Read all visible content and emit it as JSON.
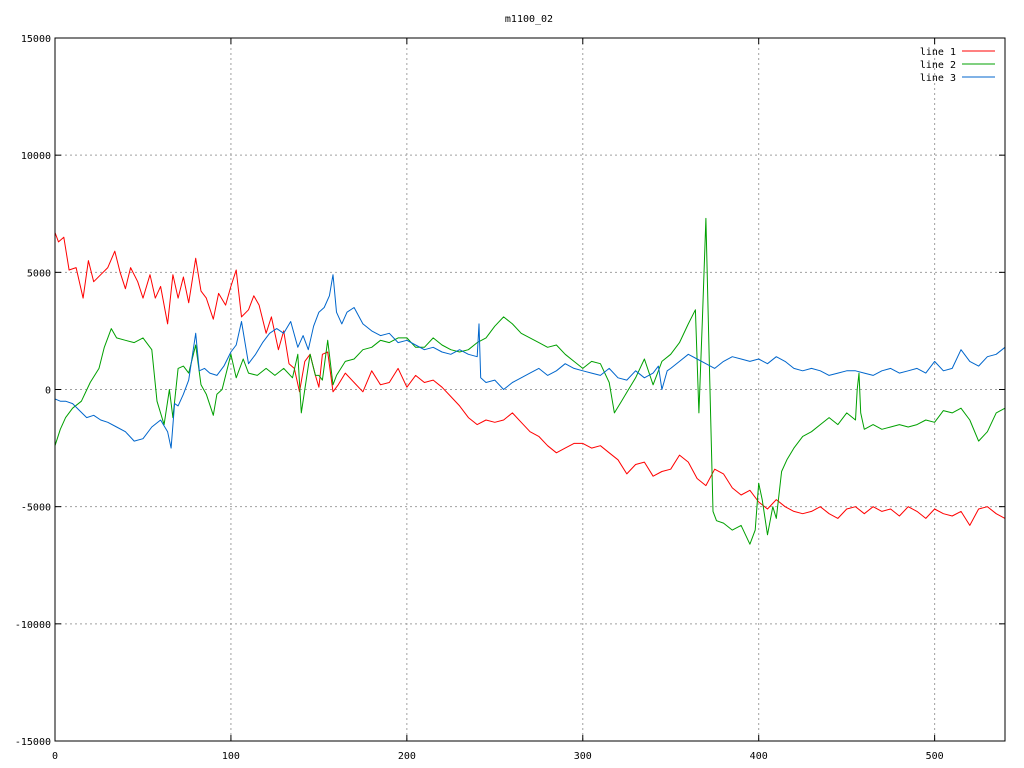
{
  "chart_data": {
    "type": "line",
    "title": "m1100_02",
    "xlabel": "",
    "ylabel": "",
    "xlim": [
      0,
      540
    ],
    "ylim": [
      -15000,
      15000
    ],
    "xticks": [
      0,
      100,
      200,
      300,
      400,
      500
    ],
    "yticks": [
      -15000,
      -10000,
      -5000,
      0,
      5000,
      10000,
      15000
    ],
    "grid": true,
    "legend_position": "top-right",
    "series": [
      {
        "name": "line 1",
        "color": "#ff0000",
        "x": [
          0,
          2,
          5,
          8,
          12,
          16,
          19,
          22,
          26,
          30,
          34,
          37,
          40,
          43,
          47,
          50,
          54,
          57,
          60,
          64,
          67,
          70,
          73,
          76,
          80,
          83,
          86,
          90,
          93,
          97,
          100,
          103,
          106,
          110,
          113,
          116,
          120,
          123,
          127,
          130,
          133,
          136,
          139,
          142,
          145,
          148,
          150,
          152,
          155,
          158,
          161,
          165,
          170,
          175,
          180,
          185,
          190,
          195,
          200,
          205,
          210,
          215,
          220,
          225,
          230,
          235,
          240,
          245,
          250,
          255,
          260,
          265,
          270,
          275,
          280,
          285,
          290,
          295,
          300,
          305,
          310,
          315,
          320,
          325,
          330,
          335,
          340,
          345,
          350,
          355,
          360,
          365,
          370,
          375,
          380,
          385,
          390,
          395,
          400,
          405,
          410,
          415,
          420,
          425,
          430,
          435,
          440,
          445,
          450,
          455,
          460,
          465,
          470,
          475,
          480,
          485,
          490,
          495,
          500,
          505,
          510,
          515,
          520,
          525,
          530,
          535,
          540
        ],
        "y": [
          6700,
          6300,
          6500,
          5100,
          5200,
          3900,
          5500,
          4600,
          4900,
          5200,
          5900,
          5000,
          4300,
          5200,
          4600,
          3900,
          4900,
          3900,
          4400,
          2800,
          4900,
          3900,
          4800,
          3700,
          5600,
          4200,
          3900,
          3000,
          4100,
          3600,
          4400,
          5100,
          3100,
          3400,
          4000,
          3600,
          2400,
          3100,
          1700,
          2500,
          1100,
          900,
          -100,
          1200,
          1500,
          600,
          100,
          1500,
          1600,
          -100,
          200,
          700,
          300,
          -100,
          800,
          200,
          300,
          900,
          100,
          600,
          300,
          400,
          100,
          -300,
          -700,
          -1200,
          -1500,
          -1300,
          -1400,
          -1300,
          -1000,
          -1400,
          -1800,
          -2000,
          -2400,
          -2700,
          -2500,
          -2300,
          -2300,
          -2500,
          -2400,
          -2700,
          -3000,
          -3600,
          -3200,
          -3100,
          -3700,
          -3500,
          -3400,
          -2800,
          -3100,
          -3800,
          -4100,
          -3400,
          -3600,
          -4200,
          -4500,
          -4300,
          -4800,
          -5100,
          -4700,
          -5000,
          -5200,
          -5300,
          -5200,
          -5000,
          -5300,
          -5500,
          -5100,
          -5000,
          -5300,
          -5000,
          -5200,
          -5100,
          -5400,
          -5000,
          -5200,
          -5500,
          -5100,
          -5300,
          -5400,
          -5200,
          -5800,
          -5100,
          -5000,
          -5300,
          -5500
        ]
      },
      {
        "name": "line 2",
        "color": "#00a000",
        "x": [
          0,
          3,
          6,
          10,
          15,
          20,
          25,
          28,
          32,
          35,
          40,
          45,
          50,
          55,
          58,
          62,
          65,
          67,
          70,
          73,
          76,
          80,
          83,
          86,
          90,
          92,
          95,
          98,
          100,
          103,
          107,
          110,
          115,
          120,
          125,
          130,
          135,
          138,
          140,
          142,
          145,
          148,
          150,
          152,
          155,
          158,
          160,
          165,
          170,
          175,
          180,
          185,
          190,
          195,
          200,
          205,
          210,
          215,
          220,
          225,
          230,
          235,
          240,
          245,
          250,
          255,
          260,
          265,
          270,
          275,
          280,
          285,
          290,
          295,
          300,
          305,
          310,
          315,
          318,
          322,
          326,
          330,
          335,
          340,
          345,
          350,
          355,
          360,
          364,
          366,
          368,
          370,
          372,
          374,
          376,
          380,
          385,
          390,
          395,
          398,
          400,
          402,
          405,
          408,
          410,
          413,
          416,
          420,
          425,
          430,
          435,
          440,
          445,
          450,
          455,
          456,
          457,
          458,
          460,
          465,
          470,
          475,
          480,
          485,
          490,
          495,
          500,
          505,
          510,
          515,
          520,
          525,
          530,
          535,
          540
        ],
        "y": [
          -2400,
          -1700,
          -1200,
          -800,
          -500,
          300,
          900,
          1800,
          2600,
          2200,
          2100,
          2000,
          2200,
          1700,
          -500,
          -1500,
          0,
          -1200,
          900,
          1000,
          700,
          1900,
          200,
          -200,
          -1100,
          -200,
          0,
          900,
          1500,
          500,
          1300,
          700,
          600,
          900,
          600,
          900,
          500,
          1500,
          -1000,
          0,
          1500,
          600,
          600,
          400,
          2100,
          200,
          600,
          1200,
          1300,
          1700,
          1800,
          2100,
          2000,
          2200,
          2200,
          1800,
          1800,
          2200,
          1900,
          1700,
          1600,
          1700,
          2000,
          2200,
          2700,
          3100,
          2800,
          2400,
          2200,
          2000,
          1800,
          1900,
          1500,
          1200,
          900,
          1200,
          1100,
          300,
          -1000,
          -500,
          0,
          500,
          1300,
          200,
          1200,
          1500,
          2000,
          2800,
          3400,
          -1000,
          3000,
          7300,
          1000,
          -5200,
          -5600,
          -5700,
          -6000,
          -5800,
          -6600,
          -6000,
          -4000,
          -4700,
          -6200,
          -5000,
          -5500,
          -3500,
          -3000,
          -2500,
          -2000,
          -1800,
          -1500,
          -1200,
          -1500,
          -1000,
          -1300,
          0,
          700,
          -1000,
          -1700,
          -1500,
          -1700,
          -1600,
          -1500,
          -1600,
          -1500,
          -1300,
          -1400,
          -900,
          -1000,
          -800,
          -1300,
          -2200,
          -1800,
          -1000,
          -800
        ]
      },
      {
        "name": "line 3",
        "color": "#0066cc",
        "x": [
          0,
          3,
          6,
          10,
          14,
          18,
          22,
          26,
          30,
          35,
          40,
          45,
          50,
          55,
          60,
          64,
          66,
          68,
          70,
          73,
          76,
          80,
          82,
          85,
          88,
          92,
          96,
          100,
          103,
          106,
          110,
          114,
          118,
          122,
          126,
          130,
          134,
          138,
          141,
          144,
          147,
          150,
          153,
          156,
          158,
          160,
          163,
          166,
          170,
          175,
          180,
          185,
          190,
          195,
          200,
          205,
          210,
          215,
          220,
          225,
          230,
          235,
          240,
          241,
          242,
          245,
          250,
          255,
          260,
          265,
          270,
          275,
          280,
          285,
          290,
          295,
          300,
          305,
          310,
          315,
          320,
          325,
          330,
          335,
          340,
          343,
          345,
          348,
          350,
          355,
          360,
          365,
          370,
          375,
          380,
          385,
          390,
          395,
          400,
          405,
          410,
          415,
          420,
          425,
          430,
          435,
          440,
          445,
          450,
          455,
          460,
          465,
          470,
          475,
          480,
          485,
          490,
          495,
          500,
          505,
          510,
          515,
          520,
          525,
          530,
          535,
          540
        ],
        "y": [
          -400,
          -500,
          -500,
          -600,
          -900,
          -1200,
          -1100,
          -1300,
          -1400,
          -1600,
          -1800,
          -2200,
          -2100,
          -1600,
          -1300,
          -1800,
          -2500,
          -600,
          -700,
          -200,
          400,
          2400,
          800,
          900,
          700,
          600,
          1000,
          1600,
          1900,
          2900,
          1100,
          1500,
          2000,
          2400,
          2600,
          2400,
          2900,
          1800,
          2300,
          1700,
          2700,
          3300,
          3500,
          4000,
          4900,
          3300,
          2800,
          3300,
          3500,
          2800,
          2500,
          2300,
          2400,
          2000,
          2100,
          1900,
          1700,
          1800,
          1600,
          1500,
          1700,
          1500,
          1400,
          2800,
          500,
          300,
          400,
          0,
          300,
          500,
          700,
          900,
          600,
          800,
          1100,
          900,
          800,
          700,
          600,
          900,
          500,
          400,
          800,
          500,
          700,
          1000,
          0,
          800,
          900,
          1200,
          1500,
          1300,
          1100,
          900,
          1200,
          1400,
          1300,
          1200,
          1300,
          1100,
          1400,
          1200,
          900,
          800,
          900,
          800,
          600,
          700,
          800,
          800,
          700,
          600,
          800,
          900,
          700,
          800,
          900,
          700,
          1200,
          800,
          900,
          1700,
          1200,
          1000,
          1400,
          1500,
          1800
        ]
      }
    ]
  }
}
